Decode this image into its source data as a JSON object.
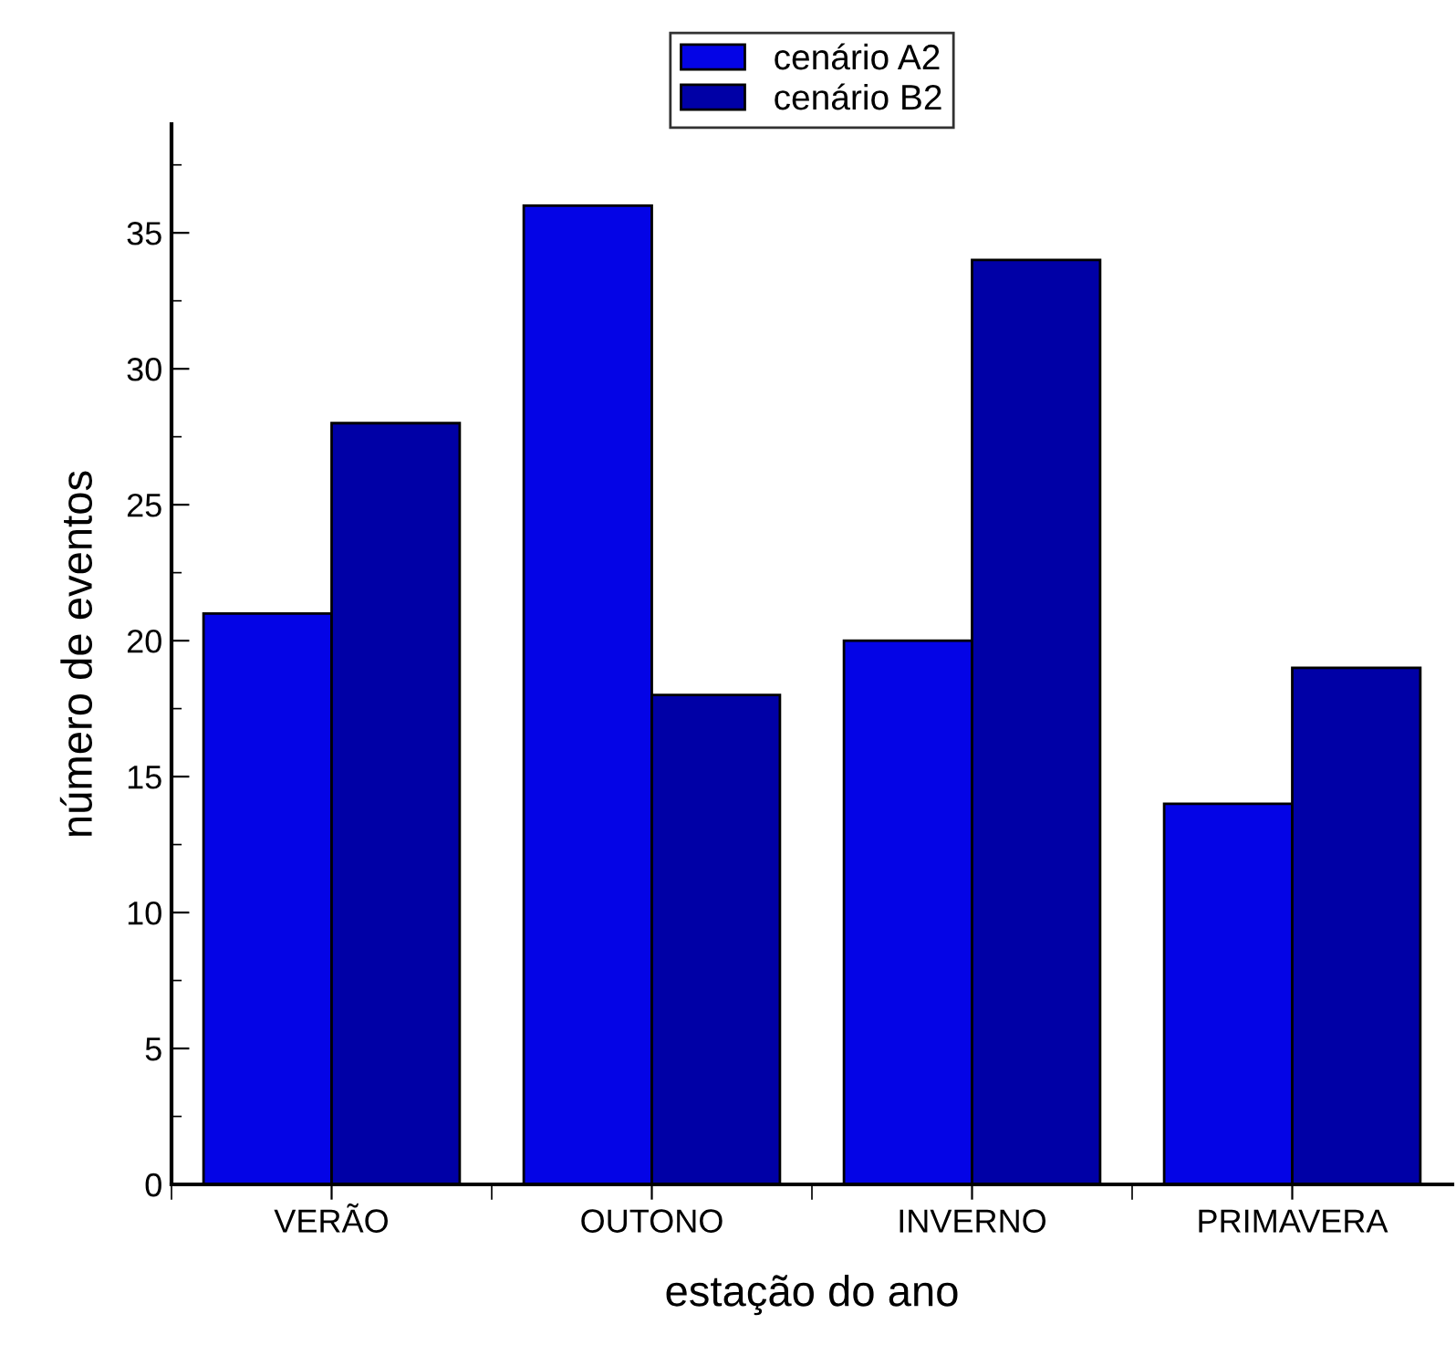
{
  "chart_data": {
    "type": "bar",
    "xlabel": "estação do ano",
    "ylabel": "número de eventos",
    "categories": [
      "VERÃO",
      "OUTONO",
      "INVERNO",
      "PRIMAVERA"
    ],
    "series": [
      {
        "name": "cenário A2",
        "color": "#0404e6",
        "values": [
          21,
          36,
          20,
          14
        ]
      },
      {
        "name": "cenário B2",
        "color": "#0000a6",
        "values": [
          28,
          18,
          34,
          19
        ]
      }
    ],
    "ylim": [
      0,
      39
    ],
    "yticks": [
      0,
      {
        "value": 2.5,
        "label": null
      },
      5,
      {
        "value": 7.5,
        "label": null
      },
      10,
      {
        "value": 12.5,
        "label": null
      },
      15,
      {
        "value": 17.5,
        "label": null
      },
      20,
      {
        "value": 22.5,
        "label": null
      },
      25,
      {
        "value": 27.5,
        "label": null
      },
      30,
      {
        "value": 32.5,
        "label": null
      },
      35,
      {
        "value": 37.5,
        "label": null
      }
    ],
    "legend": "top",
    "grid": false
  }
}
